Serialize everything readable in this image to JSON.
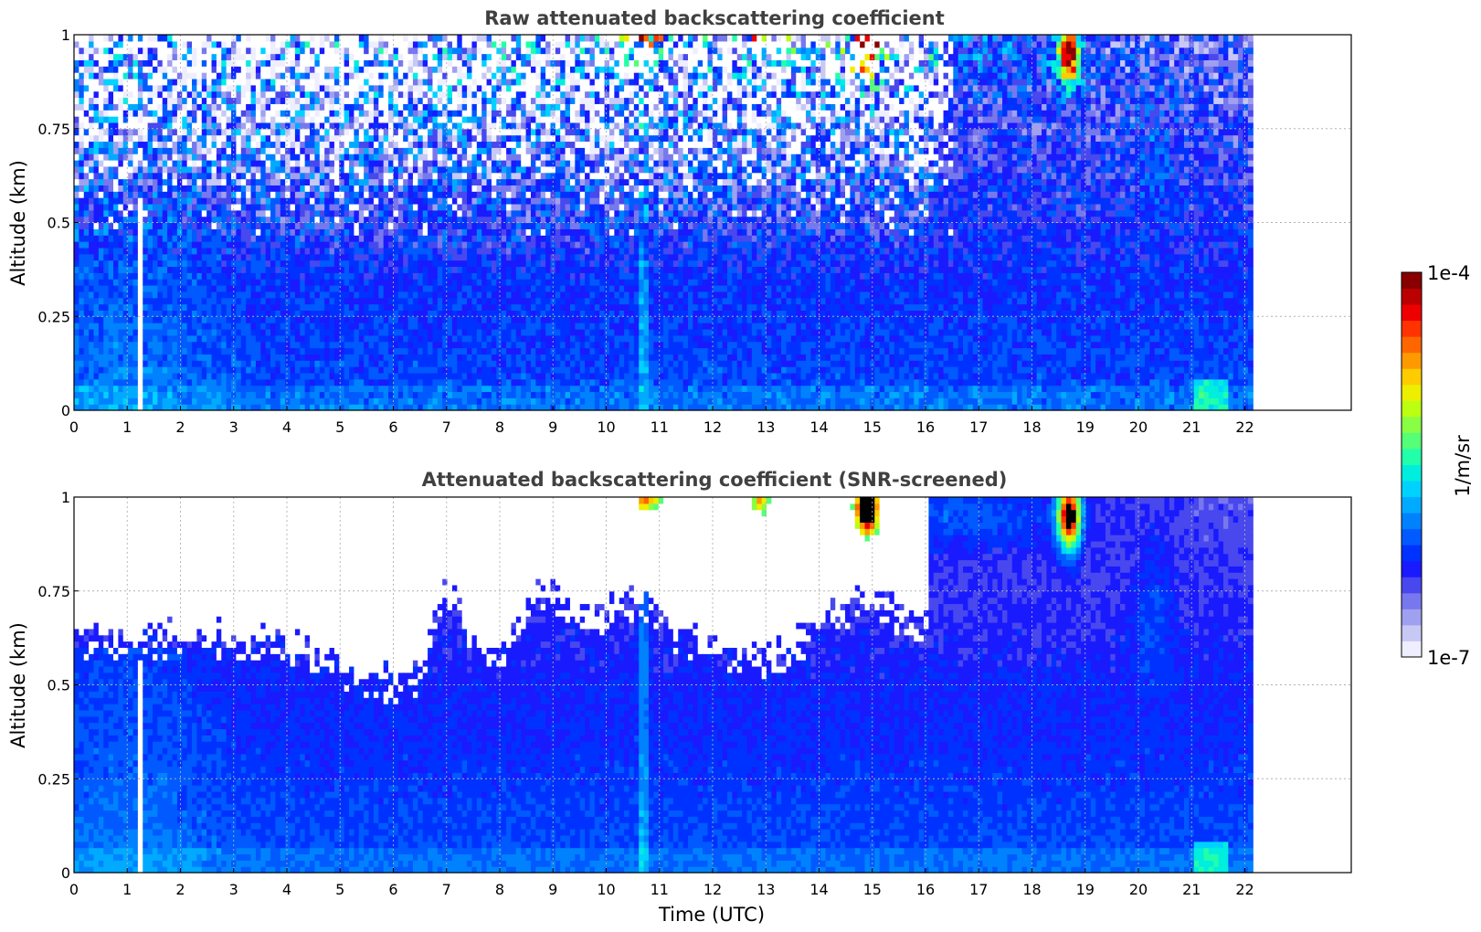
{
  "figure": {
    "xlabel": "Time (UTC)",
    "colorbar": {
      "label": "1/m/sr",
      "max_label": "1e-4",
      "min_label": "1e-7",
      "colors": [
        "#eeeeff",
        "#c8c8f5",
        "#a0a0f0",
        "#7878ee",
        "#4848ee",
        "#1a1aff",
        "#0032ff",
        "#005aff",
        "#0082ff",
        "#00aaff",
        "#00d2ff",
        "#00eedd",
        "#22ffaa",
        "#55ff77",
        "#88ff44",
        "#bbff11",
        "#eeee00",
        "#ffcc00",
        "#ff9900",
        "#ff6600",
        "#ff3300",
        "#ee0000",
        "#bb0000",
        "#880000"
      ]
    }
  },
  "chart_data": [
    {
      "type": "heatmap",
      "title": "Raw attenuated backscattering coefficient",
      "xlabel": "",
      "ylabel": "Altitude (km)",
      "xlim": [
        0,
        24
      ],
      "ylim": [
        0,
        1
      ],
      "x_ticks": [
        0,
        1,
        2,
        3,
        4,
        5,
        6,
        7,
        8,
        9,
        10,
        11,
        12,
        13,
        14,
        15,
        16,
        17,
        18,
        19,
        20,
        21,
        22
      ],
      "y_ticks": [
        0,
        0.25,
        0.5,
        0.75,
        1
      ],
      "y_tick_labels": [
        "0",
        "0.25",
        "0.5",
        "0.75",
        "1"
      ],
      "grid": true,
      "data_end_time": 22.15,
      "colorscale": "jet-log",
      "value_range": [
        "1e-7",
        "1e-4"
      ],
      "screened": false
    },
    {
      "type": "heatmap",
      "title": "Attenuated backscattering coefficient (SNR-screened)",
      "xlabel": "Time (UTC)",
      "ylabel": "Altitude (km)",
      "xlim": [
        0,
        24
      ],
      "ylim": [
        0,
        1
      ],
      "x_ticks": [
        0,
        1,
        2,
        3,
        4,
        5,
        6,
        7,
        8,
        9,
        10,
        11,
        12,
        13,
        14,
        15,
        16,
        17,
        18,
        19,
        20,
        21,
        22
      ],
      "y_ticks": [
        0,
        0.25,
        0.5,
        0.75,
        1
      ],
      "y_tick_labels": [
        "0",
        "0.25",
        "0.5",
        "0.75",
        "1"
      ],
      "grid": true,
      "data_end_time": 22.15,
      "colorscale": "jet-log",
      "value_range": [
        "1e-7",
        "1e-4"
      ],
      "screened": true
    }
  ]
}
